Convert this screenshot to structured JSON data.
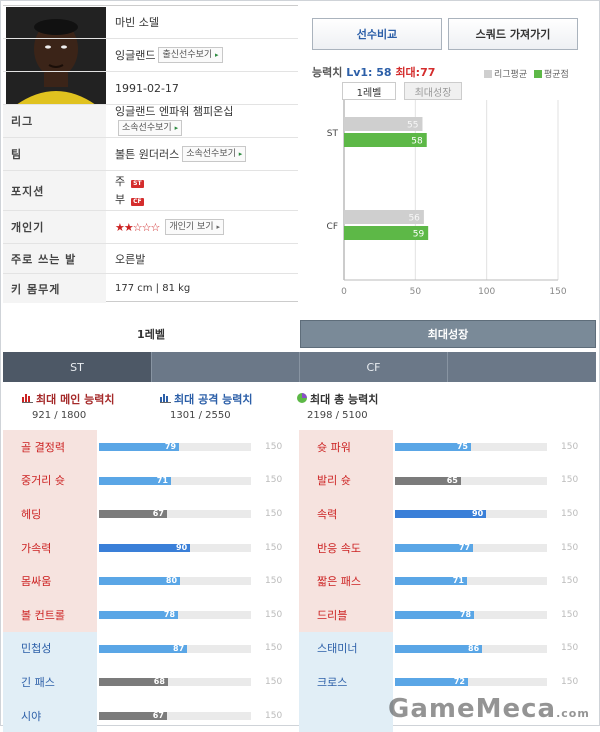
{
  "profile": {
    "name": "마빈 소델",
    "nation": "잉글랜드",
    "nation_btn": "출신선수보기",
    "birth": "1991-02-17",
    "rows": {
      "league_label": "리그",
      "league_value": "잉글랜드 엔파워 챔피온십",
      "league_btn": "소속선수보기",
      "team_label": "팀",
      "team_value": "볼튼 원더러스",
      "team_btn": "소속선수보기",
      "position_label": "포지션",
      "position_main": "주",
      "position_main_badge": "ST",
      "position_sub": "부",
      "position_sub_badge": "CF",
      "popularity_label": "개인기",
      "popularity_stars": "★★☆☆☆",
      "popularity_btn": "개인기 보기",
      "foot_label": "주로 쓰는 발",
      "foot_value": "오른발",
      "hw_label": "키 몸무게",
      "hw_value": "177 cm | 81 kg"
    }
  },
  "header": {
    "compare_btn": "선수비교",
    "squad_btn": "스쿼드 가져가기",
    "ability_label": "능력치",
    "ability_lv": "Lv1: 58",
    "ability_max": "최대:77",
    "legend_league": "리그평균",
    "legend_player": "평균점",
    "tab_lv1": "1레벨",
    "tab_max": "최대성장"
  },
  "colors": {
    "league": "#cfcfcf",
    "player": "#5db847",
    "accent_red": "#d42d2d",
    "accent_blue": "#2c5fa8"
  },
  "chart_data": {
    "type": "bar",
    "orientation": "horizontal",
    "categories": [
      "ST",
      "CF"
    ],
    "series": [
      {
        "name": "리그평균",
        "values": [
          55,
          56
        ]
      },
      {
        "name": "평균점",
        "values": [
          58,
          59
        ]
      }
    ],
    "xlim": [
      0,
      150
    ],
    "xticks": [
      0,
      50,
      100,
      150
    ]
  },
  "growth_tabs": {
    "lv1": "1레벨",
    "max": "최대성장"
  },
  "positions": [
    "ST",
    "",
    "CF",
    ""
  ],
  "summary": [
    {
      "title": "최대 메인 능력치",
      "value": "921 / 1800",
      "color": "#a52a2a",
      "icon": "bar-chart-icon-red"
    },
    {
      "title": "최대 공격 능력치",
      "value": "1301 / 2550",
      "color": "#2c5fa8",
      "icon": "bar-chart-icon-blue"
    },
    {
      "title": "최대 총 능력치",
      "value": "2198 / 5100",
      "color": "#333333",
      "icon": "pie-chart-icon"
    }
  ],
  "stat_max": "150",
  "stats_left": [
    {
      "label": "골 결정력",
      "value": 79,
      "group": "red",
      "style": "normal"
    },
    {
      "label": "중거리 슛",
      "value": 71,
      "group": "red",
      "style": "normal"
    },
    {
      "label": "헤딩",
      "value": 67,
      "group": "red",
      "style": "dark"
    },
    {
      "label": "가속력",
      "value": 90,
      "group": "red",
      "style": "strong"
    },
    {
      "label": "몸싸움",
      "value": 80,
      "group": "red",
      "style": "normal"
    },
    {
      "label": "볼 컨트롤",
      "value": 78,
      "group": "red",
      "style": "normal"
    },
    {
      "label": "민첩성",
      "value": 87,
      "group": "blue",
      "style": "normal"
    },
    {
      "label": "긴 패스",
      "value": 68,
      "group": "blue",
      "style": "dark"
    },
    {
      "label": "시야",
      "value": 67,
      "group": "blue",
      "style": "dark"
    }
  ],
  "stats_right": [
    {
      "label": "슛 파워",
      "value": 75,
      "group": "red",
      "style": "normal"
    },
    {
      "label": "발리 슛",
      "value": 65,
      "group": "red",
      "style": "dark"
    },
    {
      "label": "속력",
      "value": 90,
      "group": "red",
      "style": "strong"
    },
    {
      "label": "반응 속도",
      "value": 77,
      "group": "red",
      "style": "normal"
    },
    {
      "label": "짧은 패스",
      "value": 71,
      "group": "red",
      "style": "normal"
    },
    {
      "label": "드리블",
      "value": 78,
      "group": "red",
      "style": "normal"
    },
    {
      "label": "스태미너",
      "value": 86,
      "group": "blue",
      "style": "normal"
    },
    {
      "label": "크로스",
      "value": 72,
      "group": "blue",
      "style": "normal"
    },
    {
      "label": "",
      "value": null,
      "group": "blue",
      "style": "none"
    }
  ],
  "watermark": "GameMeca",
  "watermark_suffix": ".com"
}
